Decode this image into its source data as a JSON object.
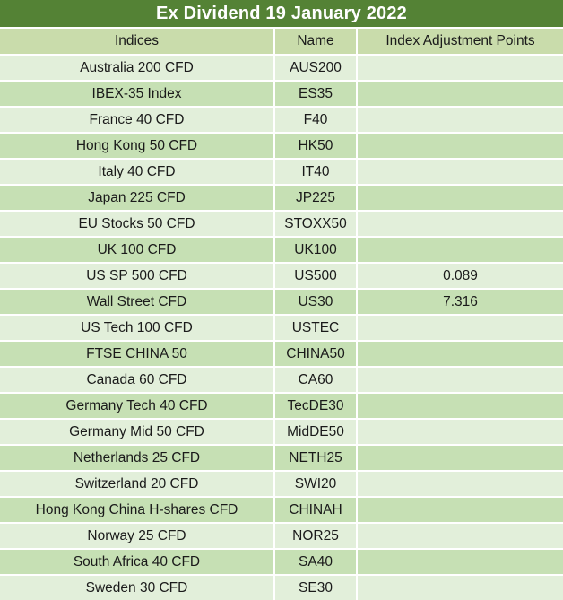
{
  "title": "Ex Dividend 19 January 2022",
  "columns": [
    "Indices",
    "Name",
    "Index Adjustment Points"
  ],
  "rows": [
    {
      "indices": "Australia 200 CFD",
      "name": "AUS200",
      "points": ""
    },
    {
      "indices": "IBEX-35 Index",
      "name": "ES35",
      "points": ""
    },
    {
      "indices": "France 40 CFD",
      "name": "F40",
      "points": ""
    },
    {
      "indices": "Hong Kong 50 CFD",
      "name": "HK50",
      "points": ""
    },
    {
      "indices": "Italy 40 CFD",
      "name": "IT40",
      "points": ""
    },
    {
      "indices": "Japan 225 CFD",
      "name": "JP225",
      "points": ""
    },
    {
      "indices": "EU Stocks 50 CFD",
      "name": "STOXX50",
      "points": ""
    },
    {
      "indices": "UK 100 CFD",
      "name": "UK100",
      "points": ""
    },
    {
      "indices": "US SP 500 CFD",
      "name": "US500",
      "points": "0.089"
    },
    {
      "indices": "Wall Street CFD",
      "name": "US30",
      "points": "7.316"
    },
    {
      "indices": "US Tech 100 CFD",
      "name": "USTEC",
      "points": ""
    },
    {
      "indices": "FTSE CHINA 50",
      "name": "CHINA50",
      "points": ""
    },
    {
      "indices": "Canada 60 CFD",
      "name": "CA60",
      "points": ""
    },
    {
      "indices": "Germany Tech 40 CFD",
      "name": "TecDE30",
      "points": ""
    },
    {
      "indices": "Germany Mid 50 CFD",
      "name": "MidDE50",
      "points": ""
    },
    {
      "indices": "Netherlands 25 CFD",
      "name": "NETH25",
      "points": ""
    },
    {
      "indices": "Switzerland 20 CFD",
      "name": "SWI20",
      "points": ""
    },
    {
      "indices": "Hong Kong China H-shares CFD",
      "name": "CHINAH",
      "points": ""
    },
    {
      "indices": "Norway 25 CFD",
      "name": "NOR25",
      "points": ""
    },
    {
      "indices": "South Africa 40 CFD",
      "name": "SA40",
      "points": ""
    },
    {
      "indices": "Sweden 30 CFD",
      "name": "SE30",
      "points": ""
    }
  ],
  "colors": {
    "title_bg": "#548235",
    "title_text": "#ffffff",
    "header_bg": "#c9dcab",
    "row_light": "#e2efda",
    "row_dark": "#c6e0b4"
  }
}
